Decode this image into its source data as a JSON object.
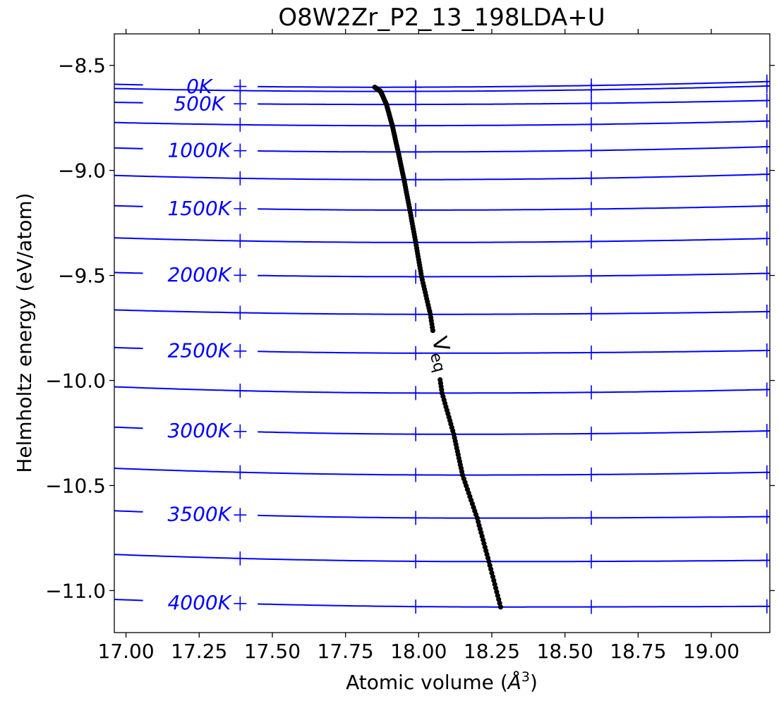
{
  "chart_data": {
    "type": "line",
    "title": "O8W2Zr_P2_13_198LDA+U",
    "xlabel": "Atomic volume ($\\AA^3$)",
    "xlabel_parts": {
      "text": "Atomic volume (",
      "symbol": "Å",
      "sup": "3",
      "close": ")"
    },
    "ylabel": "Helmholtz energy (eV/atom)",
    "xlim": [
      16.96,
      19.2
    ],
    "ylim": [
      -11.2,
      -8.35
    ],
    "xticks": [
      17.0,
      17.25,
      17.5,
      17.75,
      18.0,
      18.25,
      18.5,
      18.75,
      19.0
    ],
    "xtick_labels": [
      "17.00",
      "17.25",
      "17.50",
      "17.75",
      "18.00",
      "18.25",
      "18.50",
      "18.75",
      "19.00"
    ],
    "yticks": [
      -8.5,
      -9.0,
      -9.5,
      -10.0,
      -10.5,
      -11.0
    ],
    "ytick_labels": [
      "−8.5",
      "−9.0",
      "−9.5",
      "−10.0",
      "−10.5",
      "−11.0"
    ],
    "grid": false,
    "curve_color": "#0000ff",
    "veq_color": "#000000",
    "marker_volumes": [
      17.39,
      17.99,
      18.59,
      19.19
    ],
    "isotherms": [
      {
        "T": 0,
        "label": "0K",
        "V0": 17.85,
        "F0": -8.604,
        "left": -8.59,
        "right": -8.577
      },
      {
        "T": 250,
        "label": "",
        "V0": 17.87,
        "F0": -8.624,
        "left": -8.61,
        "right": -8.598
      },
      {
        "T": 500,
        "label": "500K",
        "V0": 17.89,
        "F0": -8.686,
        "left": -8.676,
        "right": -8.667
      },
      {
        "T": 750,
        "label": "",
        "V0": 17.91,
        "F0": -8.787,
        "left": -8.772,
        "right": -8.765
      },
      {
        "T": 1000,
        "label": "1000K",
        "V0": 17.93,
        "F0": -8.912,
        "left": -8.893,
        "right": -8.887
      },
      {
        "T": 1250,
        "label": "",
        "V0": 17.95,
        "F0": -9.044,
        "left": -9.024,
        "right": -9.018
      },
      {
        "T": 1500,
        "label": "1500K",
        "V0": 17.97,
        "F0": -9.189,
        "left": -9.168,
        "right": -9.169
      },
      {
        "T": 1750,
        "label": "",
        "V0": 17.99,
        "F0": -9.343,
        "left": -9.321,
        "right": -9.324
      },
      {
        "T": 2000,
        "label": "2000K",
        "V0": 18.01,
        "F0": -9.506,
        "left": -9.486,
        "right": -9.49
      },
      {
        "T": 2250,
        "label": "",
        "V0": 18.04,
        "F0": -9.685,
        "left": -9.664,
        "right": -9.672
      },
      {
        "T": 2500,
        "label": "2500K",
        "V0": 18.06,
        "F0": -9.87,
        "left": -9.843,
        "right": -9.857
      },
      {
        "T": 2750,
        "label": "",
        "V0": 18.08,
        "F0": -10.06,
        "left": -10.03,
        "right": -10.043
      },
      {
        "T": 3000,
        "label": "3000K",
        "V0": 18.12,
        "F0": -10.256,
        "left": -10.222,
        "right": -10.24
      },
      {
        "T": 3250,
        "label": "",
        "V0": 18.15,
        "F0": -10.45,
        "left": -10.418,
        "right": -10.437
      },
      {
        "T": 3500,
        "label": "3500K",
        "V0": 18.2,
        "F0": -10.655,
        "left": -10.62,
        "right": -10.648
      },
      {
        "T": 3750,
        "label": "",
        "V0": 18.24,
        "F0": -10.862,
        "left": -10.828,
        "right": -10.856
      },
      {
        "T": 4000,
        "label": "4000K",
        "V0": 18.28,
        "F0": -11.078,
        "left": -11.042,
        "right": -11.075
      }
    ],
    "label_x": 17.17,
    "veq": {
      "label": "V_eq",
      "label_parts": {
        "base": "V",
        "sub": "eq"
      },
      "label_position": [
        18.06,
        -9.88
      ],
      "gap_between_F": [
        -9.77,
        -9.99
      ]
    }
  }
}
